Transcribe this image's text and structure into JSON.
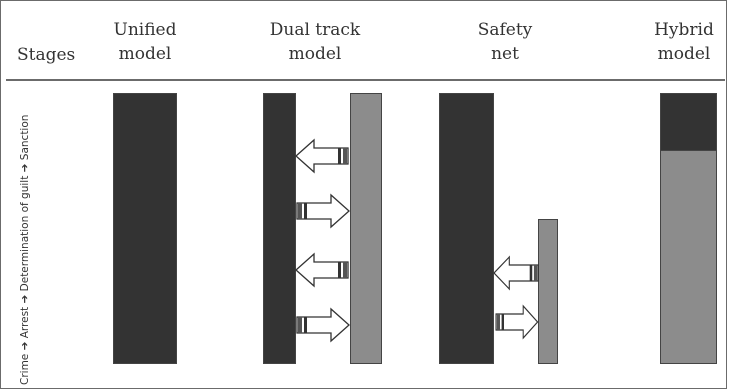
{
  "headers": {
    "stages": "Stages",
    "unified": [
      "Unified",
      "model"
    ],
    "dual_track": [
      "Dual track",
      "model"
    ],
    "safety_net": [
      "Safety",
      "net"
    ],
    "hybrid": [
      "Hybrid",
      "model"
    ]
  },
  "stage_sequence": "Crime ➔ Arrest ➔ Determination of guilt ➔ Sanction",
  "colors": {
    "dark_track": "#333333",
    "grey_track": "#8c8c8c",
    "border": "#6b6b6b"
  },
  "icons": [
    "arrow-left-icon",
    "arrow-right-icon"
  ]
}
